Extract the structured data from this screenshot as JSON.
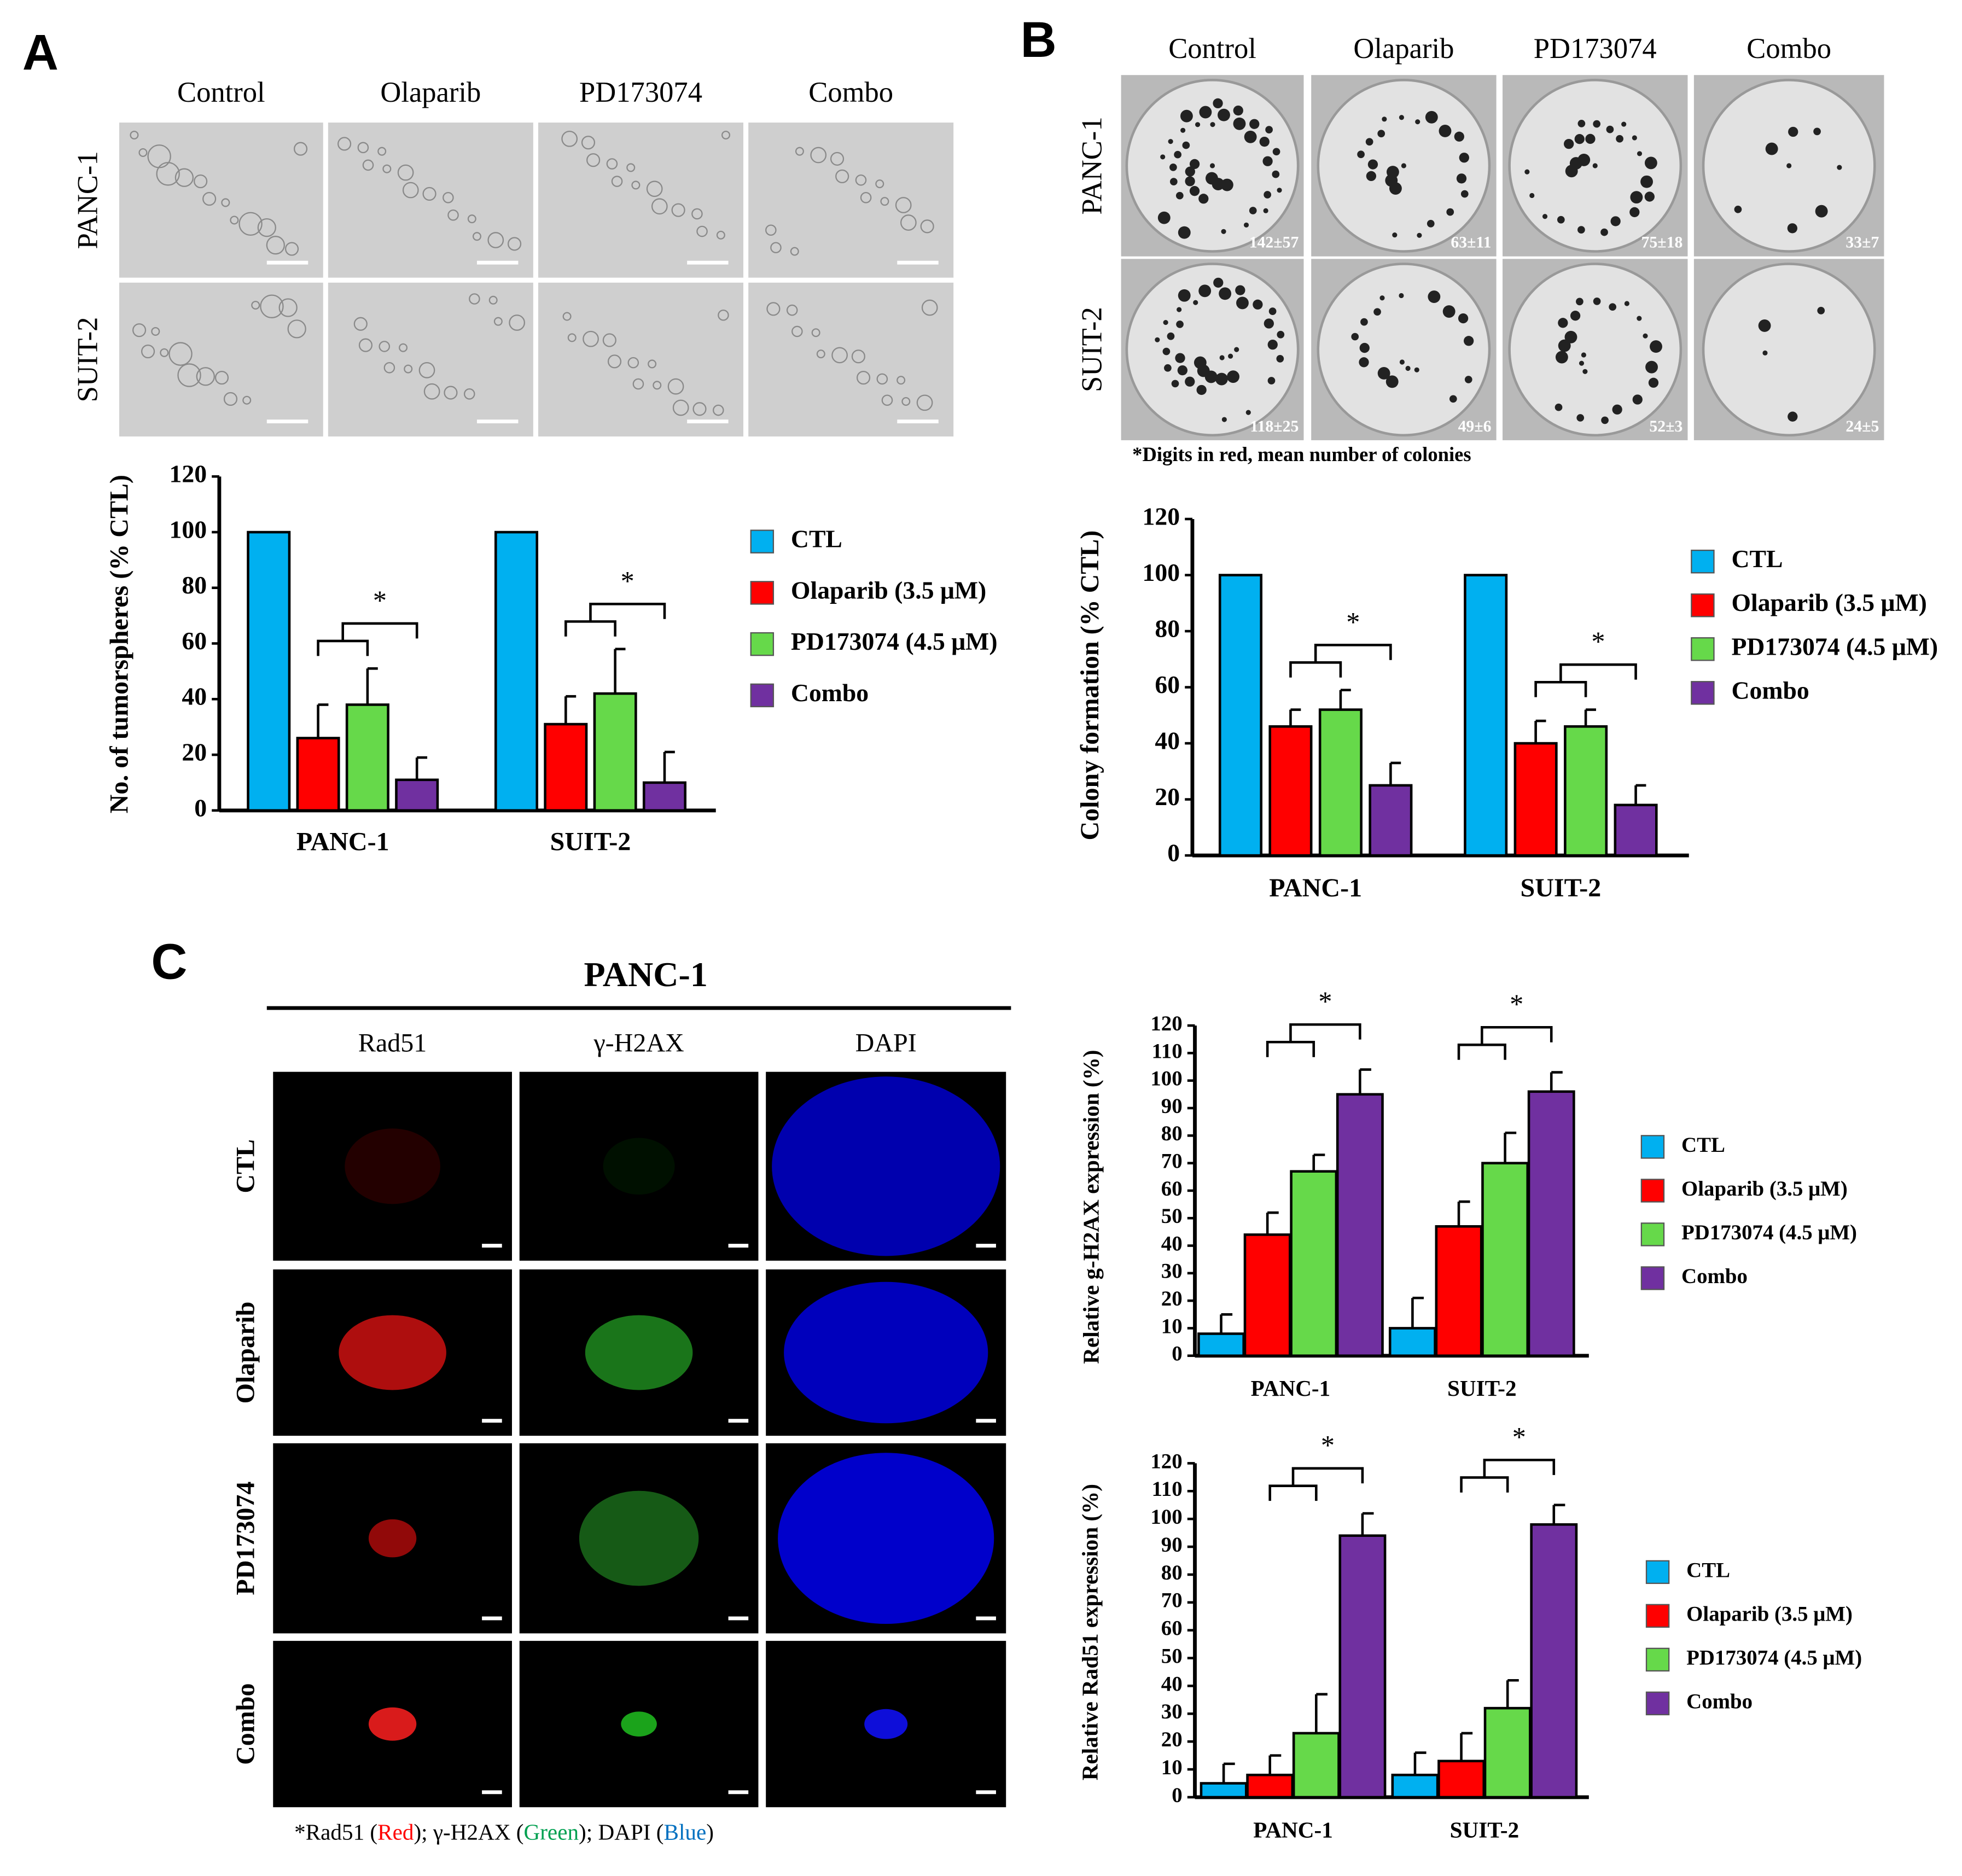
{
  "panels": {
    "A": {
      "label": "A",
      "columns": [
        "Control",
        "Olaparib",
        "PD173074",
        "Combo"
      ],
      "rows": [
        "PANC-1",
        "SUIT-2"
      ]
    },
    "B": {
      "label": "B",
      "columns": [
        "Control",
        "Olaparib",
        "PD173074",
        "Combo"
      ],
      "rows": [
        "PANC-1",
        "SUIT-2"
      ],
      "counts": [
        [
          "142±57",
          "63±11",
          "75±18",
          "33±7"
        ],
        [
          "118±25",
          "49±6",
          "52±3",
          "24±5"
        ]
      ],
      "note": "*Digits in red, mean number of colonies"
    },
    "C": {
      "label": "C",
      "title": "PANC-1",
      "columns": [
        "Rad51",
        "γ-H2AX",
        "DAPI"
      ],
      "rows": [
        "CTL",
        "Olaparib",
        "PD173074",
        "Combo"
      ],
      "caption": [
        "*Rad51 (",
        "Red",
        "); γ-H2AX (",
        "Green",
        "); DAPI (",
        "Blue",
        ")"
      ]
    }
  },
  "chart_data": [
    {
      "type": "bar",
      "ylabel": "No. of tumorspheres (% CTL)",
      "categories": [
        "PANC-1",
        "SUIT-2"
      ],
      "series": [
        {
          "name": "CTL",
          "color": "#00b0f0",
          "values": [
            100,
            100
          ]
        },
        {
          "name": "Olaparib (3.5 μM)",
          "color": "#ff0000",
          "values": [
            26,
            31
          ],
          "errors": [
            12,
            10
          ]
        },
        {
          "name": "PD173074 (4.5 μM)",
          "color": "#66d94a",
          "values": [
            38,
            42
          ],
          "errors": [
            13,
            16
          ]
        },
        {
          "name": "Combo",
          "color": "#7030a0",
          "values": [
            11,
            10
          ],
          "errors": [
            8,
            11
          ]
        }
      ],
      "ylim": [
        0,
        120
      ],
      "yticks": [
        0,
        20,
        40,
        60,
        80,
        100,
        120
      ],
      "annotations": [
        "*",
        "*"
      ]
    },
    {
      "type": "bar",
      "ylabel": "Colony  formation (% CTL)",
      "categories": [
        "PANC-1",
        "SUIT-2"
      ],
      "series": [
        {
          "name": "CTL",
          "color": "#00b0f0",
          "values": [
            100,
            100
          ]
        },
        {
          "name": "Olaparib (3.5 μM)",
          "color": "#ff0000",
          "values": [
            46,
            40
          ],
          "errors": [
            6,
            8
          ]
        },
        {
          "name": "PD173074 (4.5 μM)",
          "color": "#66d94a",
          "values": [
            52,
            46
          ],
          "errors": [
            7,
            6
          ]
        },
        {
          "name": "Combo",
          "color": "#7030a0",
          "values": [
            25,
            18
          ],
          "errors": [
            8,
            7
          ]
        }
      ],
      "ylim": [
        0,
        120
      ],
      "yticks": [
        0,
        20,
        40,
        60,
        80,
        100,
        120
      ],
      "annotations": [
        "*",
        "*"
      ]
    },
    {
      "type": "bar",
      "ylabel": "Relative g-H2AX expression (%)",
      "categories": [
        "PANC-1",
        "SUIT-2"
      ],
      "series": [
        {
          "name": "CTL",
          "color": "#00b0f0",
          "values": [
            8,
            10
          ],
          "errors": [
            7,
            11
          ]
        },
        {
          "name": "Olaparib (3.5 μM)",
          "color": "#ff0000",
          "values": [
            44,
            47
          ],
          "errors": [
            8,
            9
          ]
        },
        {
          "name": "PD173074 (4.5 μM)",
          "color": "#66d94a",
          "values": [
            67,
            70
          ],
          "errors": [
            6,
            11
          ]
        },
        {
          "name": "Combo",
          "color": "#7030a0",
          "values": [
            95,
            96
          ],
          "errors": [
            9,
            7
          ]
        }
      ],
      "ylim": [
        0,
        120
      ],
      "yticks": [
        0,
        10,
        20,
        30,
        40,
        50,
        60,
        70,
        80,
        90,
        100,
        110,
        120
      ],
      "annotations": [
        "*",
        "*"
      ]
    },
    {
      "type": "bar",
      "ylabel": "Relative Rad51 expression (%)",
      "categories": [
        "PANC-1",
        "SUIT-2"
      ],
      "series": [
        {
          "name": "CTL",
          "color": "#00b0f0",
          "values": [
            5,
            8
          ],
          "errors": [
            7,
            8
          ]
        },
        {
          "name": "Olaparib (3.5 μM)",
          "color": "#ff0000",
          "values": [
            8,
            13
          ],
          "errors": [
            7,
            10
          ]
        },
        {
          "name": "PD173074 (4.5 μM)",
          "color": "#66d94a",
          "values": [
            23,
            32
          ],
          "errors": [
            14,
            10
          ]
        },
        {
          "name": "Combo",
          "color": "#7030a0",
          "values": [
            94,
            98
          ],
          "errors": [
            8,
            7
          ]
        }
      ],
      "ylim": [
        0,
        120
      ],
      "yticks": [
        0,
        10,
        20,
        30,
        40,
        50,
        60,
        70,
        80,
        90,
        100,
        110,
        120
      ],
      "annotations": [
        "*",
        "*"
      ]
    }
  ]
}
